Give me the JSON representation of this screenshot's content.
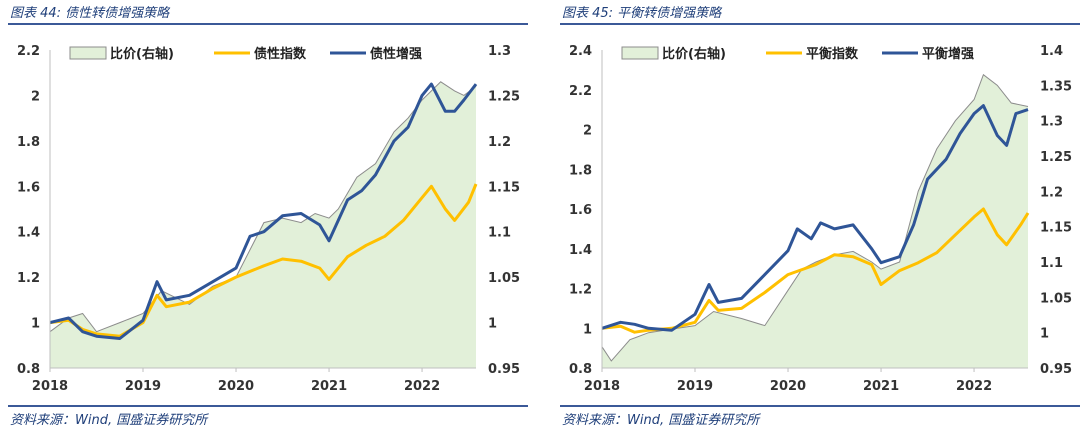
{
  "chart_data": [
    {
      "type": "line",
      "title": "图表 44: 债性转债增强策略",
      "source": "资料来源：Wind, 国盛证券研究所",
      "x_ticks": [
        "2018",
        "2019",
        "2020",
        "2021",
        "2022"
      ],
      "x_range": [
        2018.0,
        2022.58
      ],
      "ylim_left": [
        0.8,
        2.2
      ],
      "yticks_left": [
        "0.8",
        "1",
        "1.2",
        "1.4",
        "1.6",
        "1.8",
        "2",
        "2.2"
      ],
      "ylim_right": [
        0.95,
        1.3
      ],
      "yticks_right": [
        "0.95",
        "1",
        "1.05",
        "1.1",
        "1.15",
        "1.2",
        "1.25",
        "1.3"
      ],
      "legend_position": "top",
      "series": [
        {
          "name": "比价(右轴)",
          "style": "area",
          "axis": "right",
          "color": "#e2f0d9",
          "edge": "#8c8c8c",
          "x": [
            2018.0,
            2018.2,
            2018.35,
            2018.5,
            2018.75,
            2019.0,
            2019.2,
            2019.5,
            2019.75,
            2020.0,
            2020.1,
            2020.3,
            2020.5,
            2020.7,
            2020.85,
            2021.0,
            2021.1,
            2021.3,
            2021.5,
            2021.7,
            2021.85,
            2022.0,
            2022.2,
            2022.35,
            2022.45,
            2022.58
          ],
          "values": [
            0.99,
            1.005,
            1.01,
            0.99,
            1.0,
            1.01,
            1.035,
            1.02,
            1.04,
            1.05,
            1.07,
            1.11,
            1.115,
            1.11,
            1.12,
            1.115,
            1.125,
            1.16,
            1.175,
            1.21,
            1.225,
            1.245,
            1.265,
            1.255,
            1.25,
            1.26
          ]
        },
        {
          "name": "债性指数",
          "style": "line",
          "axis": "left",
          "color": "#ffc000",
          "x": [
            2018.0,
            2018.2,
            2018.35,
            2018.5,
            2018.75,
            2019.0,
            2019.15,
            2019.25,
            2019.5,
            2019.75,
            2020.0,
            2020.3,
            2020.5,
            2020.7,
            2020.9,
            2021.0,
            2021.2,
            2021.4,
            2021.6,
            2021.8,
            2022.0,
            2022.1,
            2022.25,
            2022.35,
            2022.5,
            2022.58
          ],
          "values": [
            1.0,
            1.01,
            0.97,
            0.95,
            0.94,
            1.0,
            1.12,
            1.07,
            1.09,
            1.15,
            1.2,
            1.25,
            1.28,
            1.27,
            1.24,
            1.19,
            1.29,
            1.34,
            1.38,
            1.45,
            1.55,
            1.6,
            1.5,
            1.45,
            1.53,
            1.61
          ]
        },
        {
          "name": "债性增强",
          "style": "line",
          "axis": "left",
          "color": "#2f5597",
          "x": [
            2018.0,
            2018.2,
            2018.35,
            2018.5,
            2018.75,
            2019.0,
            2019.15,
            2019.25,
            2019.5,
            2019.75,
            2020.0,
            2020.15,
            2020.3,
            2020.5,
            2020.7,
            2020.9,
            2021.0,
            2021.2,
            2021.35,
            2021.5,
            2021.7,
            2021.85,
            2022.0,
            2022.1,
            2022.25,
            2022.35,
            2022.45,
            2022.58
          ],
          "values": [
            1.0,
            1.02,
            0.96,
            0.94,
            0.93,
            1.01,
            1.18,
            1.1,
            1.12,
            1.18,
            1.24,
            1.38,
            1.4,
            1.47,
            1.48,
            1.43,
            1.36,
            1.54,
            1.58,
            1.65,
            1.8,
            1.86,
            2.0,
            2.05,
            1.93,
            1.93,
            1.98,
            2.05
          ]
        }
      ]
    },
    {
      "type": "line",
      "title": "图表 45: 平衡转债增强策略",
      "source": "资料来源：Wind, 国盛证券研究所",
      "x_ticks": [
        "2018",
        "2019",
        "2020",
        "2021",
        "2022"
      ],
      "x_range": [
        2018.0,
        2022.58
      ],
      "ylim_left": [
        0.8,
        2.4
      ],
      "yticks_left": [
        "0.8",
        "1",
        "1.2",
        "1.4",
        "1.6",
        "1.8",
        "2",
        "2.2",
        "2.4"
      ],
      "ylim_right": [
        0.95,
        1.4
      ],
      "yticks_right": [
        "0.95",
        "1",
        "1.05",
        "1.1",
        "1.15",
        "1.2",
        "1.25",
        "1.3",
        "1.35",
        "1.4"
      ],
      "legend_position": "top",
      "series": [
        {
          "name": "比价(右轴)",
          "style": "area",
          "axis": "right",
          "color": "#e2f0d9",
          "edge": "#8c8c8c",
          "x": [
            2018.0,
            2018.1,
            2018.3,
            2018.5,
            2018.75,
            2019.0,
            2019.2,
            2019.5,
            2019.75,
            2020.0,
            2020.15,
            2020.3,
            2020.5,
            2020.7,
            2020.9,
            2021.0,
            2021.2,
            2021.4,
            2021.6,
            2021.8,
            2022.0,
            2022.1,
            2022.25,
            2022.4,
            2022.58
          ],
          "values": [
            0.98,
            0.96,
            0.99,
            1.0,
            1.005,
            1.01,
            1.03,
            1.02,
            1.01,
            1.06,
            1.09,
            1.1,
            1.11,
            1.115,
            1.1,
            1.09,
            1.1,
            1.2,
            1.26,
            1.3,
            1.33,
            1.365,
            1.35,
            1.325,
            1.32
          ]
        },
        {
          "name": "平衡指数",
          "style": "line",
          "axis": "left",
          "color": "#ffc000",
          "x": [
            2018.0,
            2018.2,
            2018.35,
            2018.5,
            2018.75,
            2019.0,
            2019.15,
            2019.25,
            2019.5,
            2019.75,
            2020.0,
            2020.3,
            2020.5,
            2020.7,
            2020.9,
            2021.0,
            2021.2,
            2021.4,
            2021.6,
            2021.8,
            2022.0,
            2022.1,
            2022.25,
            2022.35,
            2022.5,
            2022.58
          ],
          "values": [
            1.0,
            1.01,
            0.98,
            0.99,
            1.0,
            1.03,
            1.14,
            1.09,
            1.1,
            1.18,
            1.27,
            1.32,
            1.37,
            1.36,
            1.32,
            1.22,
            1.29,
            1.33,
            1.38,
            1.47,
            1.56,
            1.6,
            1.47,
            1.42,
            1.52,
            1.58
          ]
        },
        {
          "name": "平衡增强",
          "style": "line",
          "axis": "left",
          "color": "#2f5597",
          "x": [
            2018.0,
            2018.2,
            2018.35,
            2018.5,
            2018.75,
            2019.0,
            2019.15,
            2019.25,
            2019.5,
            2019.75,
            2020.0,
            2020.1,
            2020.25,
            2020.35,
            2020.5,
            2020.7,
            2020.9,
            2021.0,
            2021.2,
            2021.35,
            2021.5,
            2021.7,
            2021.85,
            2022.0,
            2022.1,
            2022.25,
            2022.35,
            2022.45,
            2022.58
          ],
          "values": [
            1.0,
            1.03,
            1.02,
            1.0,
            0.99,
            1.07,
            1.22,
            1.13,
            1.15,
            1.27,
            1.39,
            1.5,
            1.45,
            1.53,
            1.5,
            1.52,
            1.4,
            1.33,
            1.36,
            1.52,
            1.75,
            1.85,
            1.98,
            2.08,
            2.12,
            1.97,
            1.92,
            2.08,
            2.1
          ]
        }
      ]
    }
  ]
}
